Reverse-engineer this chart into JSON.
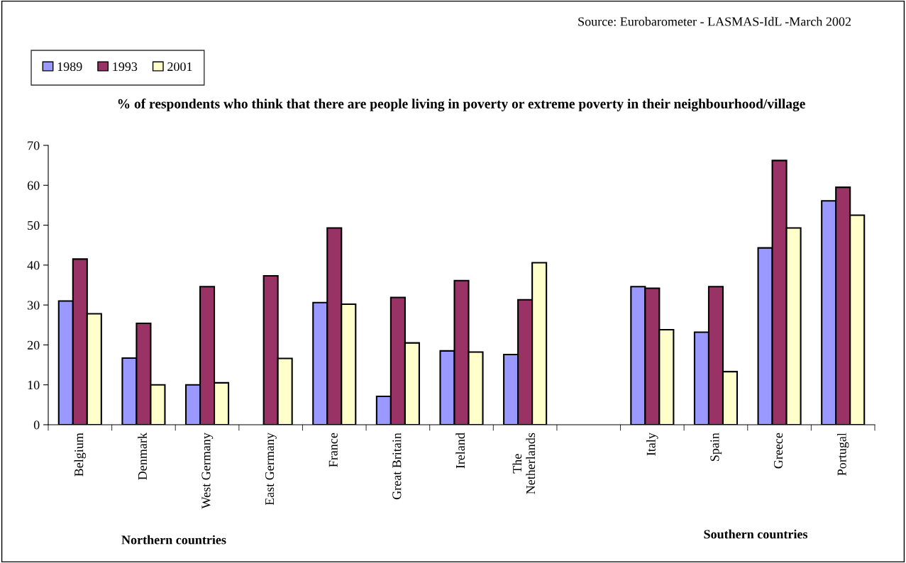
{
  "chart_data": {
    "type": "bar",
    "title": "% of respondents who think that there are people living in poverty or extreme poverty in their neighbourhood/village",
    "categories": [
      "Belgium",
      "Denmark",
      "West Germany",
      "East Germany",
      "France",
      "Great Britain",
      "Ireland",
      "The\nNetherlands",
      null,
      "Italy",
      "Spain",
      "Greece",
      "Portugal"
    ],
    "series": [
      {
        "name": "1989",
        "color": "#9999ff",
        "values": [
          31,
          16.7,
          10,
          null,
          30.6,
          7.1,
          18.5,
          17.6,
          null,
          34.6,
          23.2,
          44.3,
          56.1
        ]
      },
      {
        "name": "1993",
        "color": "#993366",
        "values": [
          41.5,
          25.4,
          34.6,
          37.3,
          49.3,
          31.9,
          36.1,
          31.3,
          null,
          34.2,
          34.6,
          66.2,
          59.5
        ]
      },
      {
        "name": "2001",
        "color": "#ffffcc",
        "values": [
          27.8,
          10,
          10.5,
          16.6,
          30.2,
          20.5,
          18.2,
          40.6,
          null,
          23.8,
          13.3,
          49.3,
          52.5
        ]
      }
    ],
    "ylim": [
      0,
      70
    ],
    "yticks": [
      0,
      10,
      20,
      30,
      40,
      50,
      60,
      70
    ],
    "grid": false,
    "legend": "top left",
    "annotations": [
      "Source: Eurobarometer - LASMAS-IdL -March 2002",
      "Northern countries",
      "Southern countries"
    ]
  }
}
